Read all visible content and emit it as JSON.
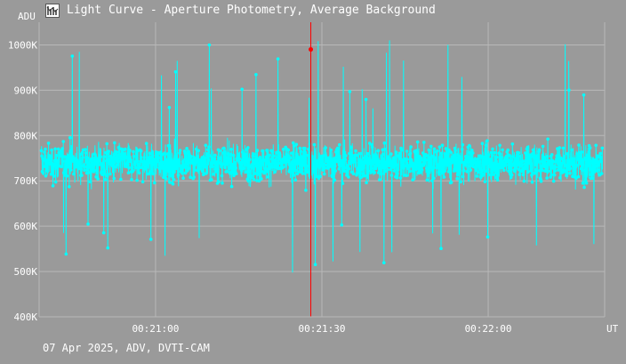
{
  "window": {
    "title": "Light Curve - Aperture Photometry, Average Background",
    "icon": "light-curve-app-icon"
  },
  "footer": {
    "info": "07 Apr 2025, ADV, DVTI-CAM"
  },
  "colors": {
    "background": "#9a9a9a",
    "grid": "#b8b8b8",
    "series": "#00ffff",
    "cursor": "#ff0000",
    "marker": "#ff0000",
    "text": "#ffffff"
  },
  "chart_data": {
    "type": "line",
    "title": "Light Curve - Aperture Photometry, Average Background",
    "ylabel": "ADU",
    "xlabel": "UT",
    "ylim": [
      400000,
      1050000
    ],
    "yticks": [
      {
        "value": 400000,
        "label": "400K"
      },
      {
        "value": 500000,
        "label": "500K"
      },
      {
        "value": 600000,
        "label": "600K"
      },
      {
        "value": 700000,
        "label": "700K"
      },
      {
        "value": 800000,
        "label": "800K"
      },
      {
        "value": 900000,
        "label": "900K"
      },
      {
        "value": 1000000,
        "label": "1000K"
      }
    ],
    "x_start": "00:20:39",
    "x_end": "00:22:21",
    "xticks": [
      {
        "value": "00:21:00",
        "label": "00:21:00"
      },
      {
        "value": "00:21:30",
        "label": "00:21:30"
      },
      {
        "value": "00:22:00",
        "label": "00:22:00"
      }
    ],
    "grid": true,
    "series": [
      {
        "color": "#00ffff",
        "style": "points connected by lines",
        "points_count": 2500,
        "mean": 740000,
        "typical_range": [
          600000,
          900000
        ],
        "min_visible": 440000,
        "max_visible": 1010000
      }
    ],
    "cursor": {
      "time": "00:21:28",
      "value": 990000,
      "color": "#ff0000"
    }
  }
}
